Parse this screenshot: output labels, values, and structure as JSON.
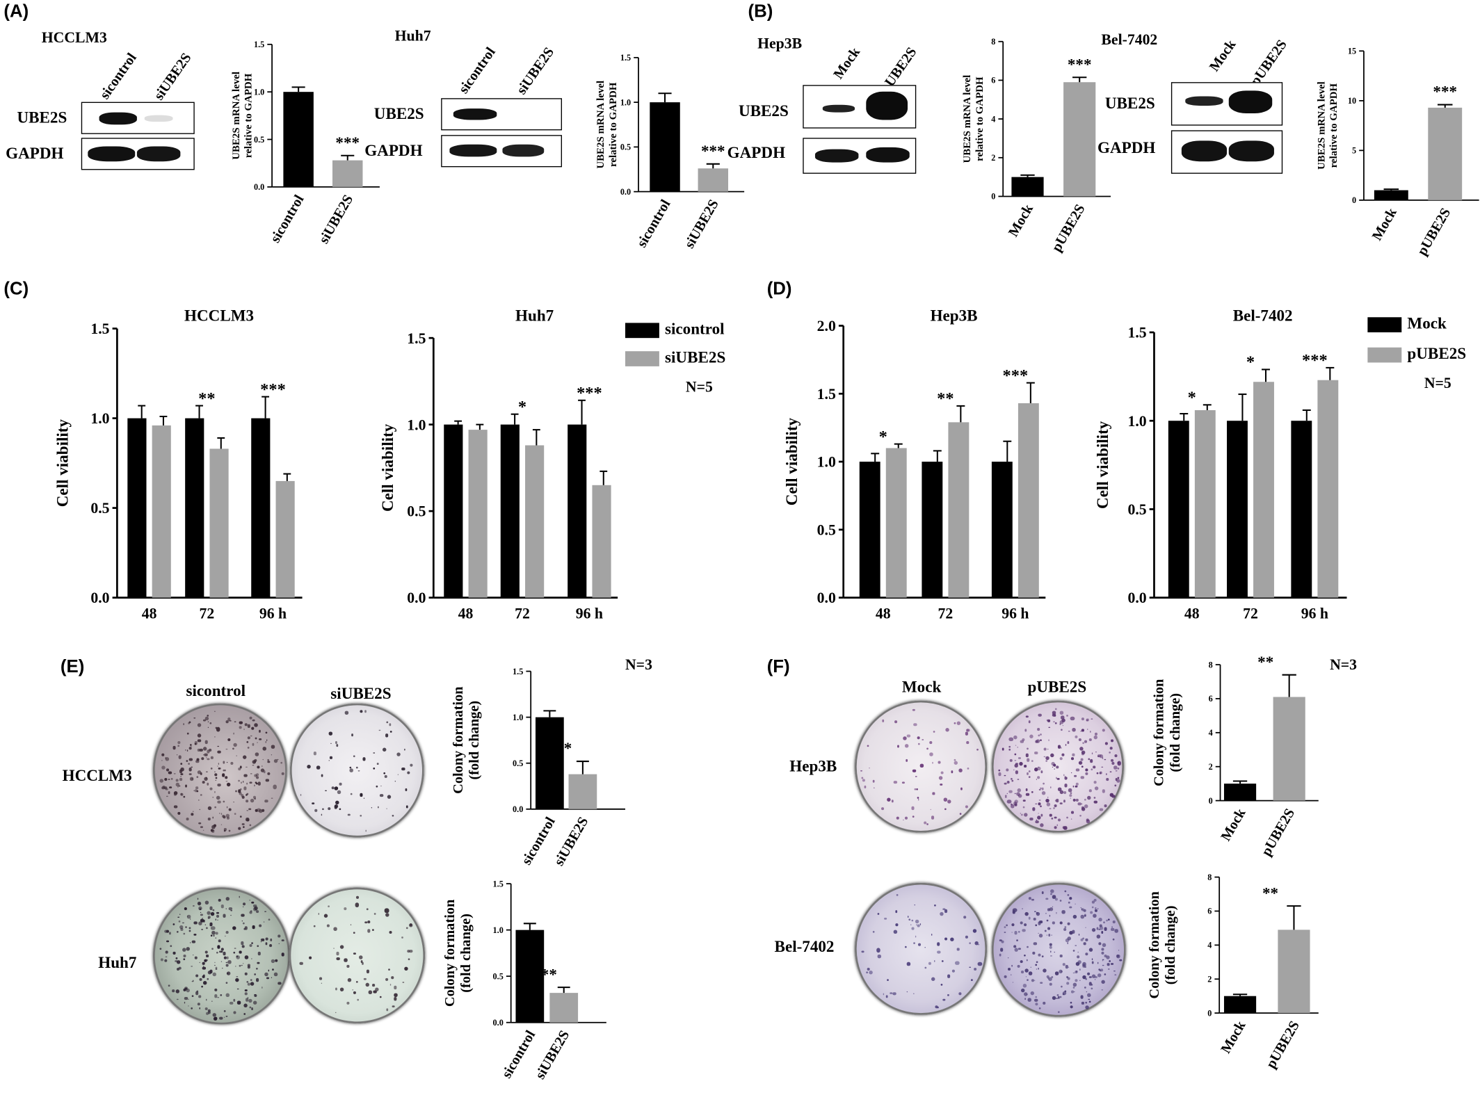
{
  "panels": {
    "A": "(A)",
    "B": "(B)",
    "C": "(C)",
    "D": "(D)",
    "E": "(E)",
    "F": "(F)"
  },
  "blots": {
    "A1": {
      "cell_line": "HCCLM3",
      "lanes": [
        "sicontrol",
        "siUBE2S"
      ],
      "rows": [
        "UBE2S",
        "GAPDH"
      ]
    },
    "A2": {
      "cell_line": "Huh7",
      "lanes": [
        "sicontrol",
        "siUBE2S"
      ],
      "rows": [
        "UBE2S",
        "GAPDH"
      ]
    },
    "B1": {
      "cell_line": "Hep3B",
      "lanes": [
        "Mock",
        "pUBE2S"
      ],
      "rows": [
        "UBE2S",
        "GAPDH"
      ]
    },
    "B2": {
      "cell_line": "Bel-7402",
      "lanes": [
        "Mock",
        "pUBE2S"
      ],
      "rows": [
        "UBE2S",
        "GAPDH"
      ]
    }
  },
  "colony_labels": {
    "E": {
      "cols": [
        "sicontrol",
        "siUBE2S"
      ],
      "rows": [
        "HCCLM3",
        "Huh7"
      ],
      "n": "N=3"
    },
    "F": {
      "cols": [
        "Mock",
        "pUBE2S"
      ],
      "rows": [
        "Hep3B",
        "Bel-7402"
      ],
      "n": "N=3"
    }
  },
  "legends": {
    "C": {
      "items": [
        "sicontrol",
        "siUBE2S"
      ],
      "n": "N=5"
    },
    "D": {
      "items": [
        "Mock",
        "pUBE2S"
      ],
      "n": "N=5"
    }
  },
  "colors": {
    "black_bar": "#000000",
    "grey_bar": "#a3a3a3"
  },
  "chart_data": [
    {
      "id": "A_HCCLM3",
      "type": "bar",
      "categories": [
        "sicontrol",
        "siUBE2S"
      ],
      "values": [
        1.0,
        0.28
      ],
      "errors": [
        0.05,
        0.05
      ],
      "ylim": [
        0,
        1.5
      ],
      "ticks": [
        "0.0",
        "0.5",
        "1.0",
        "1.5"
      ],
      "ylabel": [
        "UBE2S mRNA level",
        "relative to GAPDH"
      ],
      "annotations": [
        {
          "bar": 1,
          "text": "***"
        }
      ]
    },
    {
      "id": "A_Huh7",
      "type": "bar",
      "categories": [
        "sicontrol",
        "siUBE2S"
      ],
      "values": [
        1.0,
        0.26
      ],
      "errors": [
        0.1,
        0.05
      ],
      "ylim": [
        0,
        1.5
      ],
      "ticks": [
        "0.0",
        "0.5",
        "1.0",
        "1.5"
      ],
      "ylabel": [
        "UBE2S mRNA level",
        "relative to GAPDH"
      ],
      "annotations": [
        {
          "bar": 1,
          "text": "***"
        }
      ]
    },
    {
      "id": "B_Hep3B",
      "type": "bar",
      "categories": [
        "Mock",
        "pUBE2S"
      ],
      "values": [
        1.0,
        5.9
      ],
      "errors": [
        0.1,
        0.25
      ],
      "ylim": [
        0,
        8
      ],
      "ticks": [
        "0",
        "2",
        "4",
        "6",
        "8"
      ],
      "ylabel": [
        "UBE2S mRNA level",
        "relative to GAPDH"
      ],
      "annotations": [
        {
          "bar": 1,
          "text": "***"
        }
      ]
    },
    {
      "id": "B_Bel7402",
      "type": "bar",
      "categories": [
        "Mock",
        "pUBE2S"
      ],
      "values": [
        1.0,
        9.3
      ],
      "errors": [
        0.1,
        0.3
      ],
      "ylim": [
        0,
        15
      ],
      "ticks": [
        "0",
        "5",
        "10",
        "15"
      ],
      "ylabel": [
        "UBE2S mRNA level",
        "relative to GAPDH"
      ],
      "annotations": [
        {
          "bar": 1,
          "text": "***"
        }
      ]
    },
    {
      "id": "C_HCCLM3",
      "type": "bar",
      "title": "HCCLM3",
      "categories": [
        "48",
        "72",
        "96 h"
      ],
      "ylabel": [
        "Cell viability"
      ],
      "ylim": [
        0,
        1.5
      ],
      "ticks": [
        "0.0",
        "0.5",
        "1.0",
        "1.5"
      ],
      "series": [
        {
          "name": "sicontrol",
          "values": [
            1.0,
            1.0,
            1.0
          ],
          "errors": [
            0.07,
            0.07,
            0.12
          ]
        },
        {
          "name": "siUBE2S",
          "values": [
            0.96,
            0.83,
            0.65
          ],
          "errors": [
            0.05,
            0.06,
            0.04
          ]
        }
      ],
      "annotations": [
        "",
        "**",
        "***"
      ]
    },
    {
      "id": "C_Huh7",
      "type": "bar",
      "title": "Huh7",
      "categories": [
        "48",
        "72",
        "96 h"
      ],
      "ylabel": [
        "Cell viability"
      ],
      "ylim": [
        0,
        1.5
      ],
      "ticks": [
        "0.0",
        "0.5",
        "1.0",
        "1.5"
      ],
      "series": [
        {
          "name": "sicontrol",
          "values": [
            1.0,
            1.0,
            1.0
          ],
          "errors": [
            0.02,
            0.06,
            0.14
          ]
        },
        {
          "name": "siUBE2S",
          "values": [
            0.97,
            0.88,
            0.65
          ],
          "errors": [
            0.03,
            0.09,
            0.08
          ]
        }
      ],
      "annotations": [
        "",
        "*",
        "***"
      ]
    },
    {
      "id": "D_Hep3B",
      "type": "bar",
      "title": "Hep3B",
      "categories": [
        "48",
        "72",
        "96 h"
      ],
      "ylabel": [
        "Cell viability"
      ],
      "ylim": [
        0,
        2.0
      ],
      "ticks": [
        "0.0",
        "0.5",
        "1.0",
        "1.5",
        "2.0"
      ],
      "series": [
        {
          "name": "Mock",
          "values": [
            1.0,
            1.0,
            1.0
          ],
          "errors": [
            0.06,
            0.08,
            0.15
          ]
        },
        {
          "name": "pUBE2S",
          "values": [
            1.1,
            1.29,
            1.43
          ],
          "errors": [
            0.03,
            0.12,
            0.15
          ]
        }
      ],
      "annotations": [
        "*",
        "**",
        "***"
      ]
    },
    {
      "id": "D_Bel7402",
      "type": "bar",
      "title": "Bel-7402",
      "categories": [
        "48",
        "72",
        "96 h"
      ],
      "ylabel": [
        "Cell viability"
      ],
      "ylim": [
        0,
        1.5
      ],
      "ticks": [
        "0.0",
        "0.5",
        "1.0",
        "1.5"
      ],
      "series": [
        {
          "name": "Mock",
          "values": [
            1.0,
            1.0,
            1.0
          ],
          "errors": [
            0.04,
            0.15,
            0.06
          ]
        },
        {
          "name": "pUBE2S",
          "values": [
            1.06,
            1.22,
            1.23
          ],
          "errors": [
            0.03,
            0.07,
            0.07
          ]
        }
      ],
      "annotations": [
        "*",
        "*",
        "***"
      ]
    },
    {
      "id": "E_HCCLM3",
      "type": "bar",
      "categories": [
        "sicontrol",
        "siUBE2S"
      ],
      "values": [
        1.0,
        0.38
      ],
      "errors": [
        0.07,
        0.14
      ],
      "ylim": [
        0,
        1.5
      ],
      "ticks": [
        "0.0",
        "0.5",
        "1.0",
        "1.5"
      ],
      "ylabel": [
        "Colony formation",
        "(fold change)"
      ],
      "annotations": [
        {
          "bar": 1,
          "text": "**"
        }
      ]
    },
    {
      "id": "E_Huh7",
      "type": "bar",
      "categories": [
        "sicontrol",
        "siUBE2S"
      ],
      "values": [
        1.0,
        0.32
      ],
      "errors": [
        0.07,
        0.06
      ],
      "ylim": [
        0,
        1.5
      ],
      "ticks": [
        "0.0",
        "0.5",
        "1.0",
        "1.5"
      ],
      "ylabel": [
        "Colony formation",
        "(fold change)"
      ],
      "annotations": [
        {
          "bar": 1,
          "text": "***"
        }
      ]
    },
    {
      "id": "F_Hep3B",
      "type": "bar",
      "categories": [
        "Mock",
        "pUBE2S"
      ],
      "values": [
        1.0,
        6.1
      ],
      "errors": [
        0.15,
        1.3
      ],
      "ylim": [
        0,
        8
      ],
      "ticks": [
        "0",
        "2",
        "4",
        "6",
        "8"
      ],
      "ylabel": [
        "Colony formation",
        "(fold change)"
      ],
      "annotations": [
        {
          "bar": 1,
          "text": "**"
        }
      ]
    },
    {
      "id": "F_Bel7402",
      "type": "bar",
      "categories": [
        "Mock",
        "pUBE2S"
      ],
      "values": [
        1.0,
        4.9
      ],
      "errors": [
        0.1,
        1.4
      ],
      "ylim": [
        0,
        8
      ],
      "ticks": [
        "0",
        "2",
        "4",
        "6",
        "8"
      ],
      "ylabel": [
        "Colony formation",
        "(fold change)"
      ],
      "annotations": [
        {
          "bar": 1,
          "text": "**"
        }
      ]
    }
  ]
}
